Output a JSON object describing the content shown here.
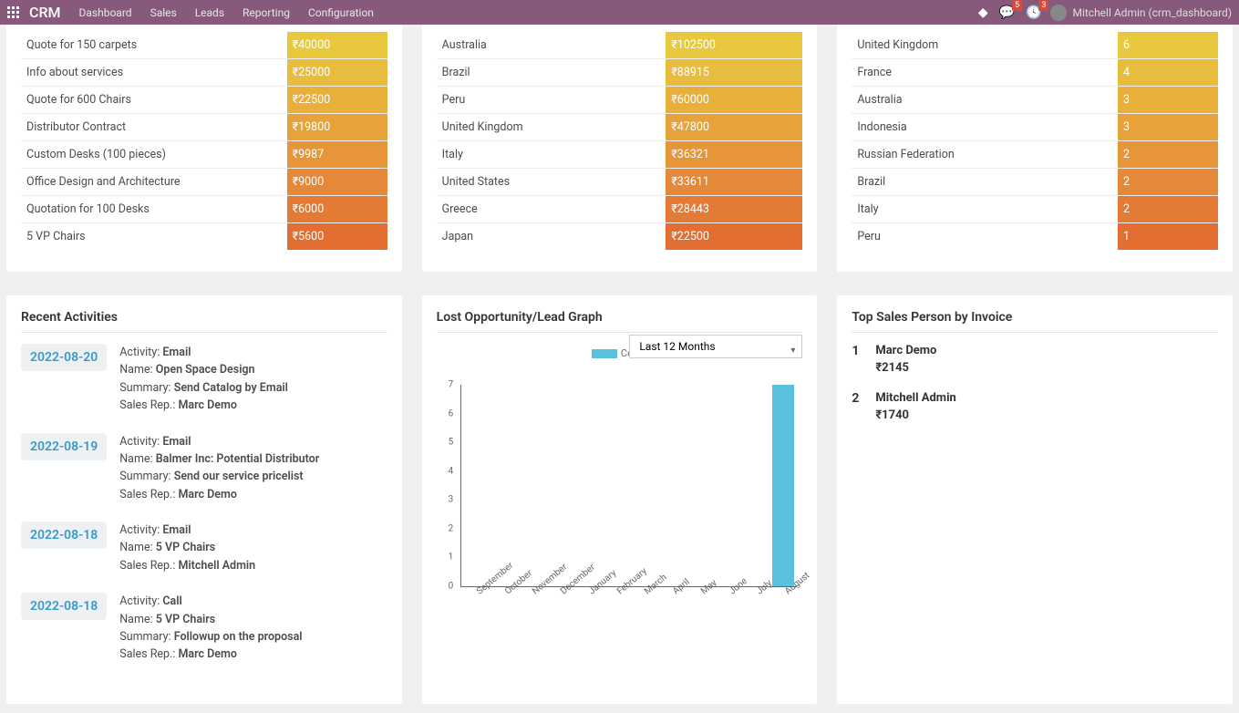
{
  "topbar": {
    "brand": "CRM",
    "nav": [
      "Dashboard",
      "Sales",
      "Leads",
      "Reporting",
      "Configuration"
    ],
    "msg_badge": "5",
    "clock_badge": "3",
    "user": "Mitchell Admin (crm_dashboard)"
  },
  "gradient": {
    "start": "#e8c93d",
    "mid": "#e89b3a",
    "end": "#e26e32"
  },
  "tables": {
    "left": [
      {
        "label": "Quote for 150 carpets",
        "val": "₹40000"
      },
      {
        "label": "Info about services",
        "val": "₹25000"
      },
      {
        "label": "Quote for 600 Chairs",
        "val": "₹22500"
      },
      {
        "label": "Distributor Contract",
        "val": "₹19800"
      },
      {
        "label": "Custom Desks (100 pieces)",
        "val": "₹9987"
      },
      {
        "label": "Office Design and Architecture",
        "val": "₹9000"
      },
      {
        "label": "Quotation for 100 Desks",
        "val": "₹6000"
      },
      {
        "label": "5 VP Chairs",
        "val": "₹5600"
      }
    ],
    "mid": [
      {
        "label": "Australia",
        "val": "₹102500"
      },
      {
        "label": "Brazil",
        "val": "₹88915"
      },
      {
        "label": "Peru",
        "val": "₹60000"
      },
      {
        "label": "United Kingdom",
        "val": "₹47800"
      },
      {
        "label": "Italy",
        "val": "₹36321"
      },
      {
        "label": "United States",
        "val": "₹33611"
      },
      {
        "label": "Greece",
        "val": "₹28443"
      },
      {
        "label": "Japan",
        "val": "₹22500"
      }
    ],
    "right": [
      {
        "label": "United Kingdom",
        "val": "6"
      },
      {
        "label": "France",
        "val": "4"
      },
      {
        "label": "Australia",
        "val": "3"
      },
      {
        "label": "Indonesia",
        "val": "3"
      },
      {
        "label": "Russian Federation",
        "val": "2"
      },
      {
        "label": "Brazil",
        "val": "2"
      },
      {
        "label": "Italy",
        "val": "2"
      },
      {
        "label": "Peru",
        "val": "1"
      }
    ]
  },
  "sections": {
    "activities": "Recent Activities",
    "lost": "Lost Opportunity/Lead Graph",
    "top": "Top Sales Person by Invoice"
  },
  "activities": [
    {
      "date": "2022-08-20",
      "type": "Email",
      "name": "Open Space Design",
      "summary": "Send Catalog by Email",
      "rep": "Marc Demo"
    },
    {
      "date": "2022-08-19",
      "type": "Email",
      "name": "Balmer Inc: Potential Distributor",
      "summary": "Send our service pricelist",
      "rep": "Marc Demo"
    },
    {
      "date": "2022-08-18",
      "type": "Email",
      "name": "5 VP Chairs",
      "summary": null,
      "rep": "Mitchell Admin"
    },
    {
      "date": "2022-08-18",
      "type": "Call",
      "name": "5 VP Chairs",
      "summary": "Followup on the proposal",
      "rep": "Marc Demo"
    }
  ],
  "act_labels": {
    "activity": "Activity:",
    "name": "Name:",
    "summary": "Summary:",
    "rep": "Sales Rep.:"
  },
  "chart": {
    "period": "Last 12 Months",
    "legend": "Count",
    "ymax": 7,
    "months": [
      "September",
      "October",
      "November",
      "December",
      "January",
      "February",
      "March",
      "April",
      "May",
      "June",
      "July",
      "August"
    ],
    "bars": [
      {
        "month": "August",
        "value": 7
      }
    ],
    "bar_color": "#5bc0de"
  },
  "ranking": [
    {
      "rank": "1",
      "name": "Marc Demo",
      "val": "₹2145"
    },
    {
      "rank": "2",
      "name": "Mitchell Admin",
      "val": "₹1740"
    }
  ]
}
